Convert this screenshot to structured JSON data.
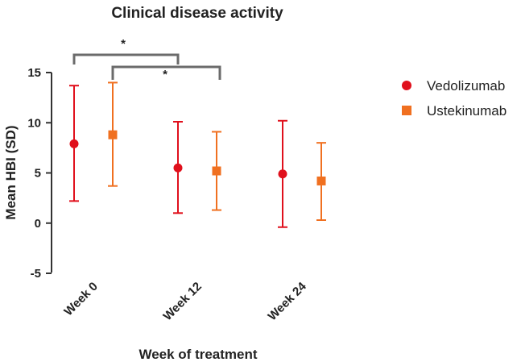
{
  "chart_data": {
    "type": "scatter",
    "title": "Clinical disease activity",
    "xlabel": "Week of treatment",
    "ylabel": "Mean HBI  (SD)",
    "categories": [
      "Week 0",
      "Week 12",
      "Week 24"
    ],
    "ylim": [
      -5,
      15
    ],
    "yticks": [
      "-5",
      "0",
      "5",
      "10",
      "15"
    ],
    "grid": false,
    "legend_position": "right",
    "series": [
      {
        "name": "Vedolizumab",
        "color": "#e0101c",
        "marker": "circle",
        "values": [
          7.9,
          5.5,
          4.9
        ],
        "sd_low": [
          2.2,
          1.0,
          -0.4
        ],
        "sd_high": [
          13.7,
          10.1,
          10.2
        ]
      },
      {
        "name": "Ustekinumab",
        "color": "#f07020",
        "marker": "square",
        "values": [
          8.8,
          5.2,
          4.2
        ],
        "sd_low": [
          3.7,
          1.3,
          0.3
        ],
        "sd_high": [
          14.0,
          9.1,
          8.0
        ]
      }
    ],
    "annotations": [
      {
        "label": "*",
        "from": "Week 0",
        "to": "Week 12",
        "series": "Vedolizumab"
      },
      {
        "label": "*",
        "from": "Week 0",
        "to": "Week 12",
        "series": "Ustekinumab"
      }
    ]
  }
}
